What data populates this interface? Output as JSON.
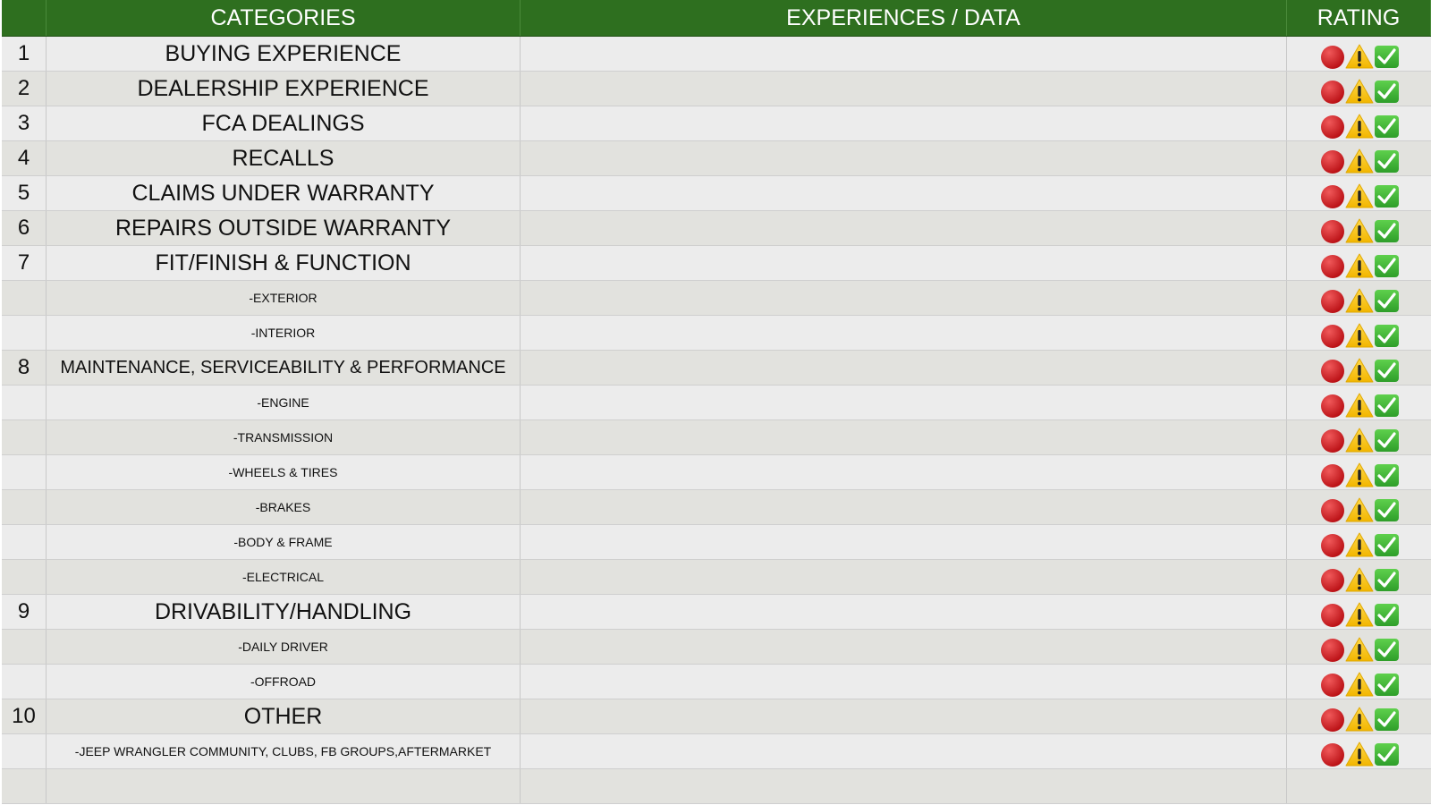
{
  "header": {
    "categories": "CATEGORIES",
    "experiences": "EXPERIENCES / DATA",
    "rating": "RATING"
  },
  "rows": [
    {
      "number": "1",
      "category": "BUYING EXPERIENCE"
    },
    {
      "number": "2",
      "category": "DEALERSHIP EXPERIENCE"
    },
    {
      "number": "3",
      "category": "FCA DEALINGS"
    },
    {
      "number": "4",
      "category": "RECALLS"
    },
    {
      "number": "5",
      "category": "CLAIMS UNDER WARRANTY"
    },
    {
      "number": "6",
      "category": "REPAIRS OUTSIDE WARRANTY"
    },
    {
      "number": "7",
      "category": "FIT/FINISH & FUNCTION"
    },
    {
      "category": "-EXTERIOR"
    },
    {
      "category": "-INTERIOR"
    },
    {
      "number": "8",
      "category": "MAINTENANCE, SERVICEABILITY & PERFORMANCE"
    },
    {
      "category": "-ENGINE"
    },
    {
      "category": "-TRANSMISSION"
    },
    {
      "category": "-WHEELS & TIRES"
    },
    {
      "category": "-BRAKES"
    },
    {
      "category": "-BODY & FRAME"
    },
    {
      "category": "-ELECTRICAL"
    },
    {
      "number": "9",
      "category": "DRIVABILITY/HANDLING"
    },
    {
      "category": "-DAILY DRIVER"
    },
    {
      "category": "-OFFROAD"
    },
    {
      "number": "10",
      "category": "OTHER"
    },
    {
      "category": "-JEEP WRANGLER COMMUNITY, CLUBS, FB GROUPS,AFTERMARKET"
    }
  ]
}
